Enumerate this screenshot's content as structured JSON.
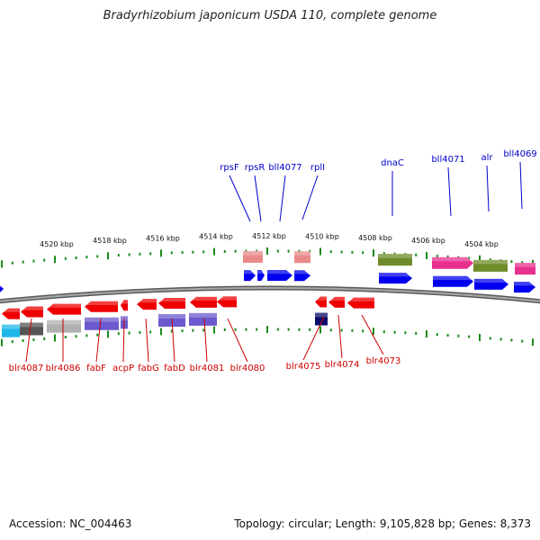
{
  "title": "Bradyrhizobium japonicum USDA 110, complete genome",
  "footer": {
    "accession": "Accession: NC_004463",
    "summary": "Topology: circular; Length: 9,105,828 bp; Genes: 8,373"
  },
  "colors": {
    "backbone": "#808080",
    "tick": "#1a8a1a",
    "top_label": "#0000cc",
    "bottom_label": "#cc0000",
    "forward_gene": "#0000ee",
    "reverse_gene": "#ee0000",
    "pink": "#e8308e",
    "olive": "#6f8c2a",
    "salmon": "#e98a8a",
    "lavender": "#6a5acd",
    "gray": "#b0b0b0",
    "dark_gray": "#555555",
    "cyan": "#1fb8e8",
    "navy": "#0a0a6a"
  },
  "scale": {
    "unit": "kbp",
    "labels": [
      "4520 kbp",
      "4518 kbp",
      "4516 kbp",
      "4514 kbp",
      "4512 kbp",
      "4510 kbp",
      "4508 kbp",
      "4506 kbp",
      "4504 kbp"
    ]
  },
  "top_labels": [
    "rpsF",
    "rpsR",
    "bll4077",
    "rplI",
    "dnaC",
    "bll4071",
    "alr",
    "bll4069"
  ],
  "bottom_labels": [
    "blr4087",
    "blr4086",
    "fabF",
    "acpP",
    "fabG",
    "fabD",
    "blr4081",
    "blr4080",
    "blr4075",
    "blr4074",
    "blr4073"
  ]
}
